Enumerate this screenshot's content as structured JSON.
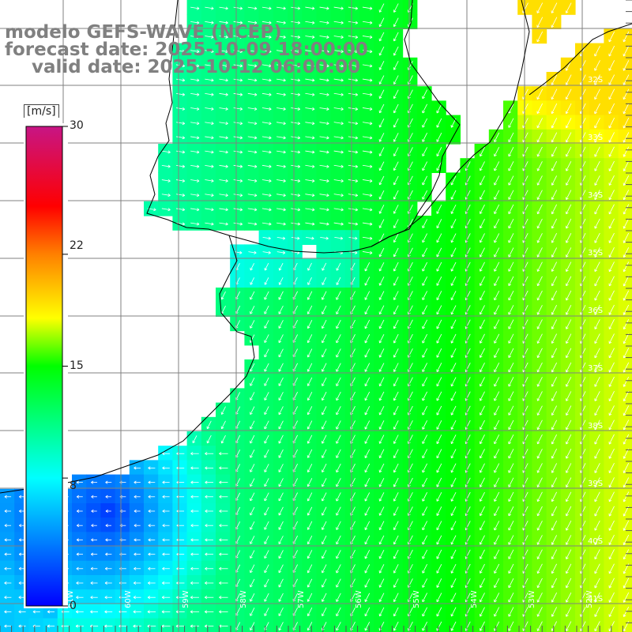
{
  "title": {
    "line1": "modelo GEFS-WAVE (NCEP)",
    "line2": "forecast date: 2025-10-09 18:00:00",
    "line3": "valid date: 2025-10-12 06:00:00"
  },
  "colorbar": {
    "unit": "[m/s]",
    "ticks": [
      "30",
      "22",
      "15",
      "8",
      "0"
    ],
    "tick_values": [
      30,
      22,
      15,
      8,
      0
    ],
    "min": 0,
    "max": 30,
    "colors": [
      "#0000ff",
      "#00ffff",
      "#00ff00",
      "#ffff00",
      "#ff8000",
      "#ff0000",
      "#c71585"
    ]
  },
  "lon_labels": [
    "61W",
    "60W",
    "59W",
    "58W",
    "57W",
    "56W",
    "55W",
    "54W",
    "53W",
    "52W",
    "51W"
  ],
  "lat_labels": [
    "32S",
    "33S",
    "34S",
    "35S",
    "36S",
    "37S",
    "38S",
    "39S",
    "40S",
    "41S"
  ],
  "colors": {
    "land": "#ffffff",
    "grid": "#808080",
    "coast": "#000000",
    "arrows": "#ffffff",
    "title": "#808080"
  }
}
